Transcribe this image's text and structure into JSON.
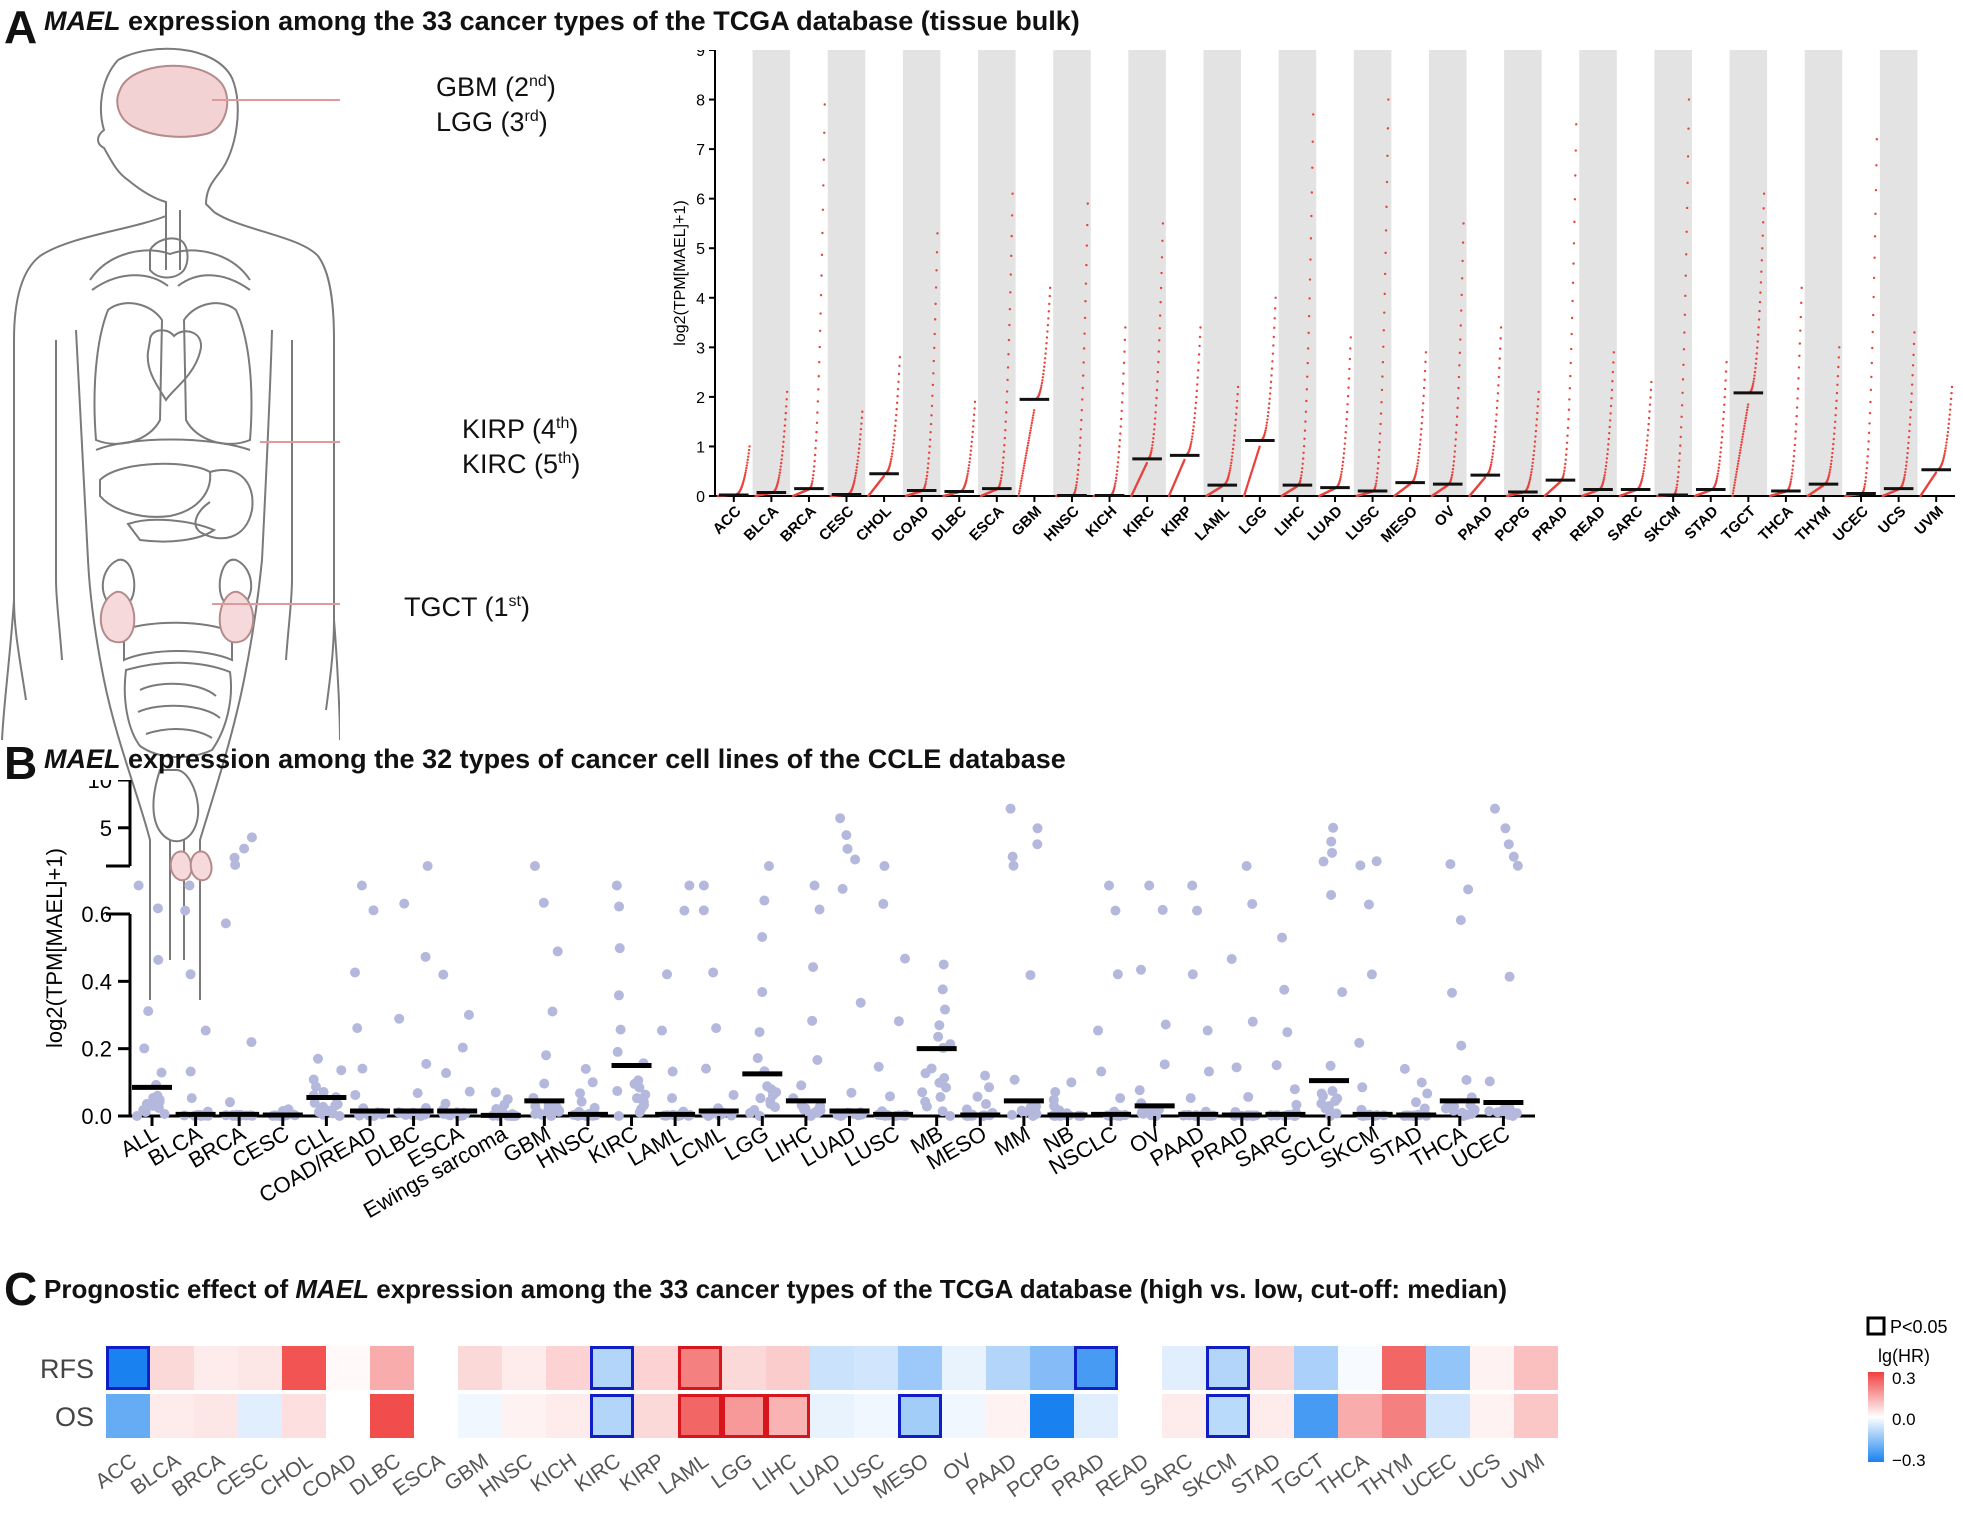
{
  "panel_a": {
    "letter": "A",
    "title_gene": "MAEL",
    "title_rest": " expression among the 33 cancer types of the TCGA database (tissue bulk)",
    "organ_labels": [
      {
        "line1": {
          "name": "GBM (2",
          "sup": "nd",
          "close": ")"
        },
        "line2": {
          "name": "LGG (3",
          "sup": "rd",
          "close": ")"
        }
      },
      {
        "line1": {
          "name": "KIRP (4",
          "sup": "th",
          "close": ")"
        },
        "line2": {
          "name": "KIRC (5",
          "sup": "th",
          "close": ")"
        }
      },
      {
        "line1": {
          "name": "TGCT (1",
          "sup": "st",
          "close": ")"
        }
      }
    ]
  },
  "panel_b": {
    "letter": "B",
    "title_gene": "MAEL",
    "title_rest": " expression among the 32 types of cancer cell lines of the CCLE database"
  },
  "panel_c": {
    "letter": "C",
    "title_pre": "Prognostic effect of ",
    "title_gene": "MAEL",
    "title_rest": " expression among the 33 cancer types of the TCGA database (high vs. low, cut-off: median)"
  },
  "colors": {
    "tcga_points": "#e8423c",
    "ccle_points": "#b4b8dc",
    "stripe": "#e3e3e3",
    "heat_positive": "#f04040",
    "heat_negative": "#1a82f0",
    "significant_up": "#d8141c",
    "significant_down": "#0f1fc8"
  },
  "chart_data": [
    {
      "type": "scatter",
      "id": "tcga_tissue",
      "ylabel": "log2(TPM[MAEL]+1)",
      "ylim": [
        0,
        9
      ],
      "yticks": [
        "0",
        "1",
        "2",
        "3",
        "4",
        "5",
        "6",
        "7",
        "8",
        "9"
      ],
      "categories": [
        "ACC",
        "BLCA",
        "BRCA",
        "CESC",
        "CHOL",
        "COAD",
        "DLBC",
        "ESCA",
        "GBM",
        "HNSC",
        "KICH",
        "KIRC",
        "KIRP",
        "LAML",
        "LGG",
        "LIHC",
        "LUAD",
        "LUSC",
        "MESO",
        "OV",
        "PAAD",
        "PCPG",
        "PRAD",
        "READ",
        "SARC",
        "SKCM",
        "STAD",
        "TGCT",
        "THCA",
        "THYM",
        "UCEC",
        "UCS",
        "UVM"
      ],
      "medians": [
        0.02,
        0.07,
        0.15,
        0.03,
        0.45,
        0.11,
        0.09,
        0.15,
        1.95,
        0.01,
        0.01,
        0.75,
        0.82,
        0.22,
        1.12,
        0.22,
        0.17,
        0.1,
        0.27,
        0.24,
        0.42,
        0.08,
        0.32,
        0.13,
        0.13,
        0.02,
        0.13,
        2.08,
        0.1,
        0.24,
        0.05,
        0.15,
        0.53
      ],
      "max_values": [
        1.0,
        2.1,
        7.9,
        1.7,
        2.8,
        5.3,
        1.9,
        6.1,
        4.2,
        5.9,
        3.4,
        5.5,
        3.4,
        2.2,
        4.0,
        7.7,
        3.2,
        8.0,
        2.9,
        5.5,
        3.4,
        2.1,
        7.5,
        2.9,
        2.3,
        8.0,
        2.7,
        6.1,
        4.2,
        3.0,
        7.2,
        3.3,
        2.2
      ],
      "stripes": "alternating grey/white background per category",
      "grid": false
    },
    {
      "type": "scatter",
      "id": "ccle_cell_lines",
      "ylabel": "log2(TPM[MAEL]+1)",
      "ylim": [
        0,
        10
      ],
      "axis_break": [
        0.6,
        1.0
      ],
      "yticks_lower": [
        "0.0",
        "0.2",
        "0.4",
        "0.6"
      ],
      "yticks_upper": [
        "5",
        "10"
      ],
      "categories": [
        "ALL",
        "BLCA",
        "BRCA",
        "CESC",
        "CLL",
        "COAD/READ",
        "DLBC",
        "ESCA",
        "Ewings sarcoma",
        "GBM",
        "HNSC",
        "KIRC",
        "LAML",
        "LCML",
        "LGG",
        "LIHC",
        "LUAD",
        "LUSC",
        "MB",
        "MESO",
        "MM",
        "NB",
        "NSCLC",
        "OV",
        "PAAD",
        "PRAD",
        "SARC",
        "SCLC",
        "SKCM",
        "STAD",
        "THCA",
        "UCEC"
      ],
      "medians": [
        0.085,
        0.005,
        0.005,
        0.003,
        0.055,
        0.015,
        0.015,
        0.015,
        0.002,
        0.045,
        0.005,
        0.15,
        0.005,
        0.015,
        0.125,
        0.045,
        0.015,
        0.005,
        0.2,
        0.003,
        0.045,
        0.003,
        0.005,
        0.03,
        0.005,
        0.003,
        0.005,
        0.105,
        0.005,
        0.003,
        0.045,
        0.04
      ],
      "max_values": [
        0.9,
        0.9,
        4.0,
        0.02,
        0.17,
        0.9,
        1.0,
        0.42,
        0.07,
        1.0,
        0.14,
        0.9,
        0.9,
        0.9,
        1.0,
        0.9,
        6.0,
        1.0,
        0.45,
        0.12,
        7.0,
        0.1,
        0.9,
        0.9,
        0.9,
        1.0,
        0.53,
        5.0,
        1.5,
        0.14,
        1.2,
        7.0
      ],
      "grid": false
    },
    {
      "type": "heatmap",
      "id": "prognostic_effect",
      "rows": [
        "RFS",
        "OS"
      ],
      "columns": [
        "ACC",
        "BLCA",
        "BRCA",
        "CESC",
        "CHOL",
        "COAD",
        "DLBC",
        "ESCA",
        "GBM",
        "HNSC",
        "KICH",
        "KIRC",
        "KIRP",
        "LAML",
        "LGG",
        "LIHC",
        "LUAD",
        "LUSC",
        "MESO",
        "OV",
        "PAAD",
        "PCPG",
        "PRAD",
        "READ",
        "SARC",
        "SKCM",
        "STAD",
        "TGCT",
        "THCA",
        "THYM",
        "UCEC",
        "UCS",
        "UVM"
      ],
      "lg_hr": [
        [
          -0.32,
          0.06,
          0.03,
          0.04,
          0.27,
          0.01,
          0.13,
          0.0,
          0.06,
          0.03,
          0.07,
          -0.1,
          0.07,
          0.2,
          0.06,
          0.08,
          -0.07,
          -0.06,
          -0.13,
          -0.03,
          -0.1,
          -0.16,
          -0.24,
          0.0,
          -0.04,
          -0.1,
          0.06,
          -0.11,
          -0.01,
          0.24,
          -0.14,
          0.02,
          0.1
        ],
        [
          -0.2,
          0.03,
          0.04,
          -0.04,
          0.05,
          0.0,
          0.28,
          0.0,
          -0.02,
          0.02,
          0.03,
          -0.1,
          0.06,
          0.24,
          0.16,
          0.12,
          -0.03,
          -0.02,
          -0.12,
          -0.02,
          0.02,
          -0.46,
          -0.04,
          0.0,
          0.03,
          -0.09,
          0.03,
          -0.24,
          0.13,
          0.2,
          -0.06,
          0.02,
          0.09
        ]
      ],
      "significant_cells": [
        [
          0,
          0
        ],
        [
          0,
          11
        ],
        [
          0,
          13
        ],
        [
          0,
          22
        ],
        [
          0,
          25
        ],
        [
          1,
          11
        ],
        [
          1,
          13
        ],
        [
          1,
          14
        ],
        [
          1,
          15
        ],
        [
          1,
          18
        ],
        [
          1,
          25
        ]
      ],
      "legend": {
        "box_label": "P<0.05",
        "scale_label": "lg(HR)",
        "ticks": [
          "0.3",
          "0.0",
          "−0.3"
        ],
        "range": [
          -0.3,
          0.3
        ]
      }
    }
  ]
}
